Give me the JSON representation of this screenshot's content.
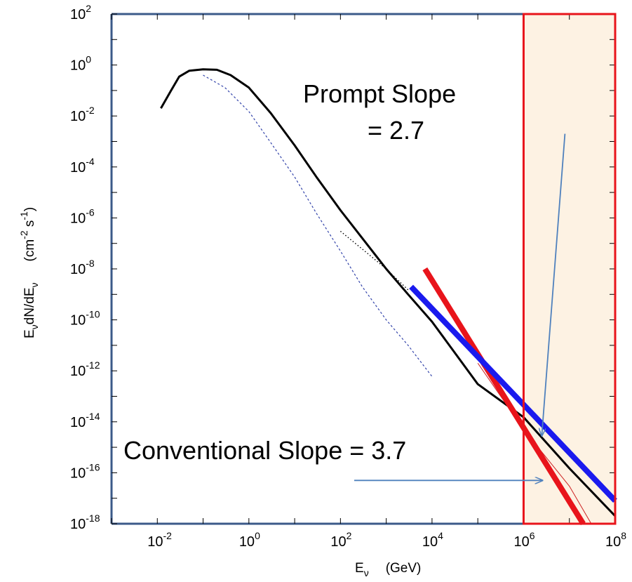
{
  "chart_data": {
    "type": "line",
    "x_scale": "log",
    "y_scale": "log",
    "xlim": [
      0.001,
      100000000
    ],
    "ylim": [
      1e-18,
      100
    ],
    "x_ticks": [
      {
        "base": "10",
        "exp": "-2",
        "value": 0.01
      },
      {
        "base": "10",
        "exp": "0",
        "value": 1
      },
      {
        "base": "10",
        "exp": "2",
        "value": 100
      },
      {
        "base": "10",
        "exp": "4",
        "value": 10000
      },
      {
        "base": "10",
        "exp": "6",
        "value": 1000000
      },
      {
        "base": "10",
        "exp": "8",
        "value": 100000000
      }
    ],
    "y_ticks": [
      {
        "base": "10",
        "exp": "2",
        "value": 100
      },
      {
        "base": "10",
        "exp": "0",
        "value": 1
      },
      {
        "base": "10",
        "exp": "-2",
        "value": 0.01
      },
      {
        "base": "10",
        "exp": "-4",
        "value": 0.0001
      },
      {
        "base": "10",
        "exp": "-6",
        "value": 1e-06
      },
      {
        "base": "10",
        "exp": "-8",
        "value": 1e-08
      },
      {
        "base": "10",
        "exp": "-10",
        "value": 1e-10
      },
      {
        "base": "10",
        "exp": "-12",
        "value": 1e-12
      },
      {
        "base": "10",
        "exp": "-14",
        "value": 1e-14
      },
      {
        "base": "10",
        "exp": "-16",
        "value": 1e-16
      },
      {
        "base": "10",
        "exp": "-18",
        "value": 1e-18
      }
    ],
    "xlabel": {
      "main": "E",
      "sub": "ν",
      "unit": "(GeV)"
    },
    "ylabel": {
      "main1": "E",
      "sub1": "ν",
      "mid": "dN/dE",
      "sub2": "ν",
      "unit_a": "(cm",
      "exp_a": "-2",
      "unit_b": " s",
      "exp_b": "-1",
      "unit_c": ")"
    },
    "annotations": {
      "prompt_line1": "Prompt Slope",
      "prompt_line2": "= 2.7",
      "conventional": "Conventional Slope = 3.7"
    },
    "series": [
      {
        "style": "solid-black",
        "x": [
          0.012,
          0.02,
          0.03,
          0.05,
          0.1,
          0.2,
          0.4,
          1,
          3,
          10,
          30,
          100,
          300,
          1000,
          3000,
          10000,
          100000,
          1000000,
          10000000,
          100000000
        ],
        "y": [
          0.02,
          0.1,
          0.35,
          0.6,
          0.68,
          0.65,
          0.4,
          0.13,
          0.013,
          0.0007,
          4e-05,
          2e-06,
          1.6e-07,
          1e-08,
          1e-09,
          8.5e-11,
          3e-13,
          1.5e-14,
          1.5e-16,
          2e-18
        ]
      },
      {
        "style": "dashed-blue",
        "x": [
          0.1,
          0.3,
          1,
          3,
          10,
          30,
          100,
          300,
          1000,
          3000,
          10000
        ],
        "y": [
          0.4,
          0.13,
          0.015,
          0.0009,
          4e-05,
          1.5e-06,
          5e-08,
          2e-09,
          1e-10,
          1e-11,
          6e-13
        ]
      },
      {
        "style": "dotted-black",
        "x": [
          100,
          300,
          1000,
          3000
        ],
        "y": [
          3e-07,
          6e-08,
          1e-08,
          1.5e-09
        ]
      },
      {
        "style": "thin-red",
        "x": [
          100000,
          1000000,
          10000000,
          30000000
        ],
        "y": [
          2e-12,
          5e-15,
          3e-17,
          1e-18
        ]
      },
      {
        "style": "thick-red",
        "name": "",
        "x": [
          7000,
          20000000
        ],
        "y": [
          1e-08,
          1e-18
        ]
      },
      {
        "style": "thick-blue",
        "name": "",
        "x": [
          3500,
          100000000
        ],
        "y": [
          2e-09,
          8e-18
        ]
      }
    ],
    "shaded_region": {
      "x_range": [
        1000000,
        100000000
      ],
      "fill": "#fdf2e3",
      "border": "#e8141b"
    },
    "arrows": [
      {
        "from": [
          8000000,
          0.002
        ],
        "to": [
          2500000,
          3e-15
        ],
        "color": "#4f81bd"
      },
      {
        "from": [
          200,
          5e-17
        ],
        "to": [
          2500000,
          5e-17
        ],
        "color": "#4f81bd"
      }
    ],
    "colors": {
      "frame": "#3b5a89",
      "blue_line": "#1a1aee",
      "red_line": "#e8141b",
      "arrow": "#4f81bd"
    }
  }
}
